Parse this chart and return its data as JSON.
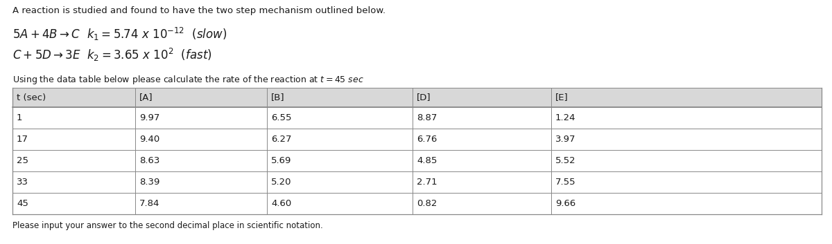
{
  "title": "A reaction is studied and found to have the two step mechanism outlined below.",
  "col_headers": [
    "t (sec)",
    "[A]",
    "[B]",
    "[D]",
    "[E]"
  ],
  "table_data": [
    [
      1,
      9.97,
      6.55,
      8.87,
      1.24
    ],
    [
      17,
      9.4,
      6.27,
      6.76,
      3.97
    ],
    [
      25,
      8.63,
      5.69,
      4.85,
      5.52
    ],
    [
      33,
      8.39,
      5.2,
      2.71,
      7.55
    ],
    [
      45,
      7.84,
      4.6,
      0.82,
      9.66
    ]
  ],
  "footer": "Please input your answer to the second decimal place in scientific notation.",
  "bg_color": "#ffffff",
  "text_color": "#1a1a1a",
  "table_border_color": "#888888",
  "table_header_bg": "#d8d8d8",
  "table_row_bg": "#ffffff"
}
